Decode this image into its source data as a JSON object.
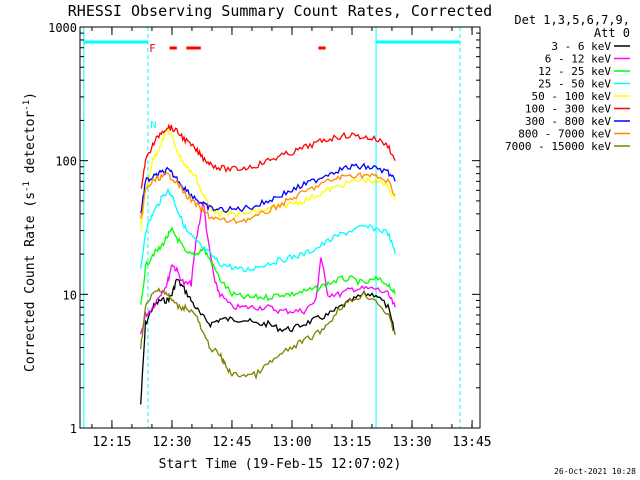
{
  "chart_data": {
    "type": "line",
    "title": "RHESSI Observing Summary Count Rates, Corrected",
    "xlabel": "Start Time (19-Feb-15 12:07:02)",
    "ylabel": "Corrected Count Rate (s⁻¹ detector⁻¹)",
    "ylabel_parts": {
      "base": "Corrected Count Rate (s",
      "exp1": "-1",
      "mid": " detector",
      "exp2": "-1",
      "end": ")"
    },
    "yscale": "log",
    "ylim": [
      1,
      1000
    ],
    "xlim_minutes": [
      12.117,
      13.783
    ],
    "x_ticks": [
      {
        "label": "12:15",
        "value": 12.25
      },
      {
        "label": "12:30",
        "value": 12.5
      },
      {
        "label": "12:45",
        "value": 12.75
      },
      {
        "label": "13:00",
        "value": 13.0
      },
      {
        "label": "13:15",
        "value": 13.25
      },
      {
        "label": "13:30",
        "value": 13.5
      },
      {
        "label": "13:45",
        "value": 13.75
      }
    ],
    "y_ticks": [
      {
        "label": "1",
        "value": 1
      },
      {
        "label": "10",
        "value": 10
      },
      {
        "label": "100",
        "value": 100
      },
      {
        "label": "1000",
        "value": 1000
      }
    ],
    "legend_header": [
      "Det 1,3,5,6,7,9,",
      "Att 0"
    ],
    "legend_position": "right",
    "flags": {
      "N_label": "N",
      "F_label": "F"
    },
    "timestamp": "26-Oct-2021 10:28",
    "series": [
      {
        "name": "3 - 6 keV",
        "color": "#000000",
        "x": [
          12.37,
          12.39,
          12.42,
          12.45,
          12.48,
          12.5,
          12.52,
          12.55,
          12.58,
          12.62,
          12.66,
          12.7,
          12.75,
          12.8,
          12.85,
          12.9,
          12.95,
          13.0,
          13.05,
          13.1,
          13.15,
          13.2,
          13.25,
          13.3,
          13.35,
          13.4,
          13.43
        ],
        "y": [
          1.5,
          6,
          8,
          9,
          9,
          10,
          13,
          11,
          9,
          7,
          6,
          6.5,
          6.5,
          6.5,
          6,
          6,
          5.5,
          5.5,
          6,
          6.5,
          7,
          8,
          9,
          10,
          10,
          8,
          5
        ]
      },
      {
        "name": "6 - 12 keV",
        "color": "#ff00ff",
        "x": [
          12.37,
          12.39,
          12.42,
          12.45,
          12.48,
          12.5,
          12.52,
          12.55,
          12.58,
          12.6,
          12.63,
          12.65,
          12.68,
          12.7,
          12.75,
          12.8,
          12.85,
          12.9,
          12.95,
          13.0,
          13.05,
          13.1,
          13.12,
          13.15,
          13.2,
          13.25,
          13.3,
          13.35,
          13.4,
          13.43
        ],
        "y": [
          5,
          7,
          8,
          10,
          12,
          17,
          15,
          12,
          12,
          25,
          50,
          25,
          12,
          10,
          8,
          8,
          8,
          8,
          7.5,
          7.5,
          7.5,
          9,
          19,
          10,
          10,
          11,
          11,
          11,
          10,
          8
        ]
      },
      {
        "name": "12 - 25 keV",
        "color": "#00ff00",
        "x": [
          12.37,
          12.39,
          12.42,
          12.45,
          12.48,
          12.5,
          12.53,
          12.56,
          12.6,
          12.63,
          12.66,
          12.7,
          12.75,
          12.8,
          12.85,
          12.9,
          12.95,
          13.0,
          13.05,
          13.1,
          13.15,
          13.2,
          13.25,
          13.3,
          13.35,
          13.4,
          13.43
        ],
        "y": [
          8,
          16,
          20,
          22,
          27,
          30,
          25,
          20,
          20,
          22,
          18,
          13,
          10,
          9.5,
          9.5,
          9.5,
          10,
          10,
          10.5,
          11,
          12,
          13,
          13,
          12,
          13,
          12,
          10
        ]
      },
      {
        "name": "25 - 50 keV",
        "color": "#00ffff",
        "x": [
          12.37,
          12.39,
          12.42,
          12.45,
          12.48,
          12.5,
          12.53,
          12.56,
          12.6,
          12.63,
          12.66,
          12.7,
          12.75,
          12.8,
          12.85,
          12.9,
          12.95,
          13.0,
          13.05,
          13.1,
          13.15,
          13.2,
          13.25,
          13.3,
          13.35,
          13.4,
          13.43
        ],
        "y": [
          15,
          30,
          40,
          50,
          60,
          55,
          40,
          30,
          25,
          22,
          20,
          17,
          16,
          15,
          16,
          17,
          18,
          19,
          20,
          22,
          25,
          28,
          30,
          32,
          31,
          29,
          20
        ]
      },
      {
        "name": "50 - 100 keV",
        "color": "#ffff00",
        "x": [
          12.37,
          12.39,
          12.42,
          12.45,
          12.48,
          12.5,
          12.53,
          12.56,
          12.6,
          12.63,
          12.66,
          12.7,
          12.75,
          12.8,
          12.85,
          12.9,
          12.95,
          13.0,
          13.05,
          13.1,
          13.15,
          13.2,
          13.25,
          13.3,
          13.35,
          13.4,
          13.43
        ],
        "y": [
          30,
          60,
          100,
          130,
          170,
          150,
          110,
          90,
          75,
          55,
          45,
          40,
          40,
          40,
          42,
          43,
          45,
          48,
          50,
          55,
          60,
          65,
          70,
          72,
          70,
          65,
          50
        ]
      },
      {
        "name": "100 - 300 keV",
        "color": "#ff0000",
        "x": [
          12.37,
          12.39,
          12.42,
          12.45,
          12.48,
          12.5,
          12.53,
          12.56,
          12.6,
          12.63,
          12.66,
          12.7,
          12.75,
          12.8,
          12.85,
          12.9,
          12.95,
          13.0,
          13.05,
          13.1,
          13.15,
          13.2,
          13.25,
          13.3,
          13.35,
          13.4,
          13.43
        ],
        "y": [
          60,
          100,
          130,
          160,
          180,
          175,
          160,
          140,
          120,
          105,
          95,
          88,
          86,
          88,
          92,
          100,
          108,
          115,
          125,
          135,
          145,
          152,
          155,
          150,
          145,
          130,
          100
        ]
      },
      {
        "name": "300 - 800 keV",
        "color": "#0000ff",
        "x": [
          12.37,
          12.39,
          12.42,
          12.45,
          12.48,
          12.5,
          12.53,
          12.56,
          12.6,
          12.63,
          12.66,
          12.7,
          12.75,
          12.8,
          12.85,
          12.9,
          12.95,
          13.0,
          13.05,
          13.1,
          13.15,
          13.2,
          13.25,
          13.3,
          13.35,
          13.4,
          13.43
        ],
        "y": [
          40,
          70,
          75,
          80,
          85,
          80,
          70,
          60,
          52,
          47,
          44,
          43,
          43,
          44,
          46,
          50,
          55,
          60,
          66,
          72,
          80,
          86,
          90,
          90,
          88,
          82,
          70
        ]
      },
      {
        "name": "800 - 7000 keV",
        "color": "#ff8c00",
        "x": [
          12.37,
          12.39,
          12.42,
          12.45,
          12.48,
          12.5,
          12.53,
          12.56,
          12.6,
          12.63,
          12.66,
          12.7,
          12.75,
          12.8,
          12.85,
          12.9,
          12.95,
          13.0,
          13.05,
          13.1,
          13.15,
          13.2,
          13.25,
          13.3,
          13.35,
          13.4,
          13.43
        ],
        "y": [
          35,
          60,
          70,
          75,
          78,
          75,
          65,
          55,
          47,
          42,
          38,
          36,
          35,
          36,
          38,
          42,
          47,
          52,
          58,
          64,
          70,
          75,
          78,
          78,
          76,
          70,
          55
        ]
      },
      {
        "name": "7000 - 15000 keV",
        "color": "#808000",
        "x": [
          12.37,
          12.39,
          12.42,
          12.45,
          12.48,
          12.5,
          12.53,
          12.56,
          12.6,
          12.63,
          12.66,
          12.7,
          12.72,
          12.75,
          12.8,
          12.85,
          12.9,
          12.95,
          13.0,
          13.05,
          13.1,
          13.15,
          13.2,
          13.25,
          13.3,
          13.35,
          13.4,
          13.43
        ],
        "y": [
          4,
          8,
          10,
          11,
          10,
          9,
          8,
          8,
          7,
          5,
          4,
          3.5,
          3,
          2.5,
          2.5,
          2.5,
          3,
          3.5,
          4,
          4.5,
          5,
          6,
          8,
          9,
          10,
          9,
          7,
          5
        ]
      }
    ]
  }
}
